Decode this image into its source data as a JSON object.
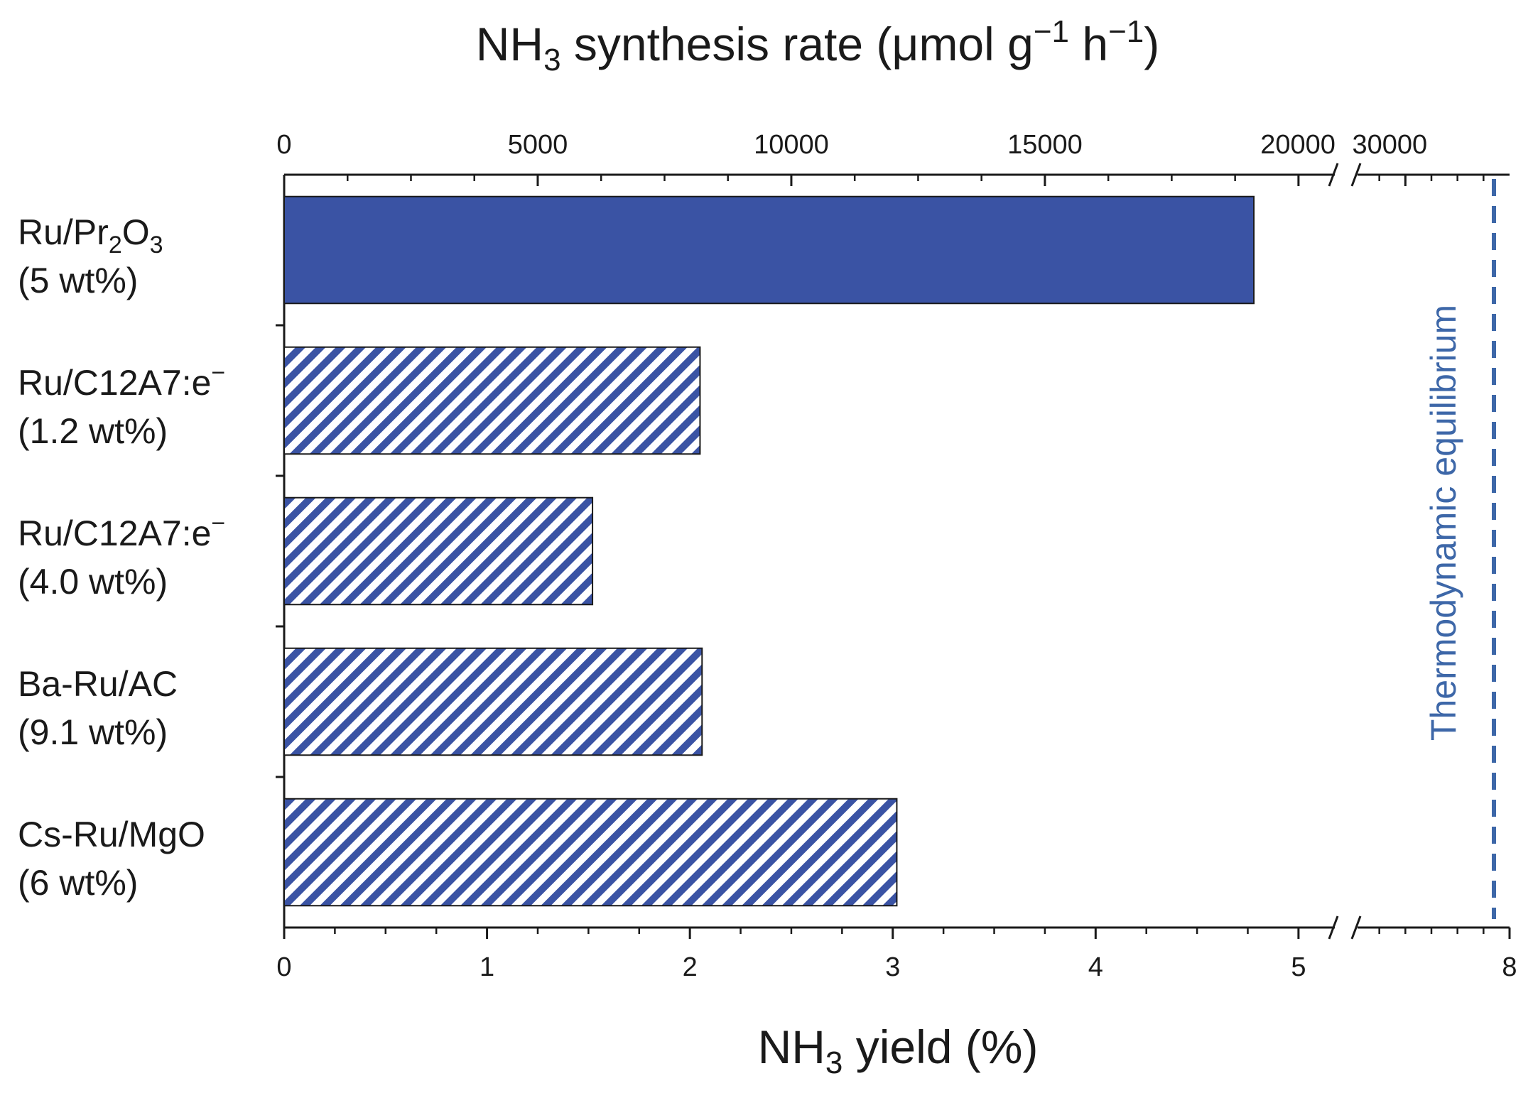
{
  "chart_data": {
    "type": "bar",
    "orientation": "horizontal",
    "categories": [
      {
        "name": "Ru/Pr",
        "sub1": "2",
        "mid": "O",
        "sub2": "3",
        "sup": "",
        "loading": "(5 wt%)"
      },
      {
        "name": "Ru/C12A7:e",
        "sub1": "",
        "mid": "",
        "sub2": "",
        "sup": "−",
        "loading": "(1.2 wt%)"
      },
      {
        "name": "Ru/C12A7:e",
        "sub1": "",
        "mid": "",
        "sub2": "",
        "sup": "−",
        "loading": "(4.0 wt%)"
      },
      {
        "name": "Ba-Ru/AC",
        "sub1": "",
        "mid": "",
        "sub2": "",
        "sup": "",
        "loading": "(9.1 wt%)"
      },
      {
        "name": "Cs-Ru/MgO",
        "sub1": "",
        "mid": "",
        "sub2": "",
        "sup": "",
        "loading": "(6 wt%)"
      }
    ],
    "values": [
      4.78,
      2.05,
      1.52,
      2.06,
      3.02
    ],
    "fill_styles": [
      "solid",
      "hatched",
      "hatched",
      "hatched",
      "hatched"
    ],
    "bottom_axis": {
      "label_pre": "NH",
      "label_sub": "3",
      "label_post": " yield (%)",
      "segment1_range": [
        0,
        5.2
      ],
      "segment2_range": [
        6.8,
        8
      ],
      "ticks1": [
        0,
        1,
        2,
        3,
        4,
        5
      ],
      "ticks2": [
        8
      ],
      "tick_labels1": [
        "0",
        "1",
        "2",
        "3",
        "4",
        "5"
      ],
      "tick_labels2": [
        "8"
      ]
    },
    "top_axis": {
      "label_pre": "NH",
      "label_sub": "3",
      "label_mid": " synthesis rate (μmol g",
      "label_sup1": "−1",
      "label_mid2": " h",
      "label_sup2": "−1",
      "label_post": ")",
      "segment1_range": [
        0,
        20800
      ],
      "ticks1": [
        0,
        5000,
        10000,
        15000,
        20000
      ],
      "tick_labels1": [
        "0",
        "5000",
        "10000",
        "15000",
        "20000"
      ],
      "ticks2_yield": [
        7.2
      ],
      "tick_labels2": [
        "30000"
      ]
    },
    "reference_line": {
      "value": 7.88,
      "label": "Thermodynamic equilibrium",
      "style": "dashed"
    },
    "axis_break": true,
    "grid": false,
    "legend": "none",
    "colors": {
      "bar": "#3a53a4",
      "hatch_bg": "#ffffff",
      "reference": "#3d67a8",
      "axis": "#1a1a1a"
    }
  }
}
